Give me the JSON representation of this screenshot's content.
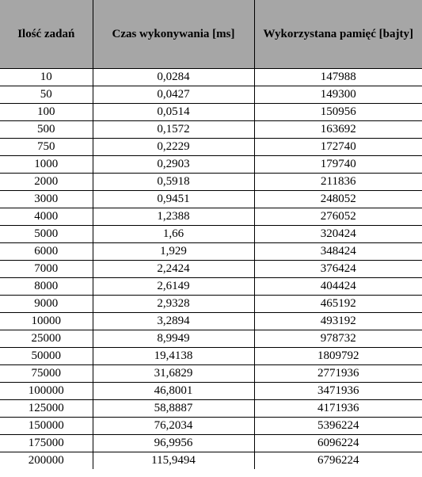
{
  "table": {
    "headers": [
      "Ilość zadań",
      "Czas wykonywania [ms]",
      "Wykorzystana pamięć [bajty]"
    ],
    "rows": [
      [
        "10",
        "0,0284",
        "147988"
      ],
      [
        "50",
        "0,0427",
        "149300"
      ],
      [
        "100",
        "0,0514",
        "150956"
      ],
      [
        "500",
        "0,1572",
        "163692"
      ],
      [
        "750",
        "0,2229",
        "172740"
      ],
      [
        "1000",
        "0,2903",
        "179740"
      ],
      [
        "2000",
        "0,5918",
        "211836"
      ],
      [
        "3000",
        "0,9451",
        "248052"
      ],
      [
        "4000",
        "1,2388",
        "276052"
      ],
      [
        "5000",
        "1,66",
        "320424"
      ],
      [
        "6000",
        "1,929",
        "348424"
      ],
      [
        "7000",
        "2,2424",
        "376424"
      ],
      [
        "8000",
        "2,6149",
        "404424"
      ],
      [
        "9000",
        "2,9328",
        "465192"
      ],
      [
        "10000",
        "3,2894",
        "493192"
      ],
      [
        "25000",
        "8,9949",
        "978732"
      ],
      [
        "50000",
        "19,4138",
        "1809792"
      ],
      [
        "75000",
        "31,6829",
        "2771936"
      ],
      [
        "100000",
        "46,8001",
        "3471936"
      ],
      [
        "125000",
        "58,8887",
        "4171936"
      ],
      [
        "150000",
        "76,2034",
        "5396224"
      ],
      [
        "175000",
        "96,9956",
        "6096224"
      ],
      [
        "200000",
        "115,9494",
        "6796224"
      ]
    ]
  }
}
